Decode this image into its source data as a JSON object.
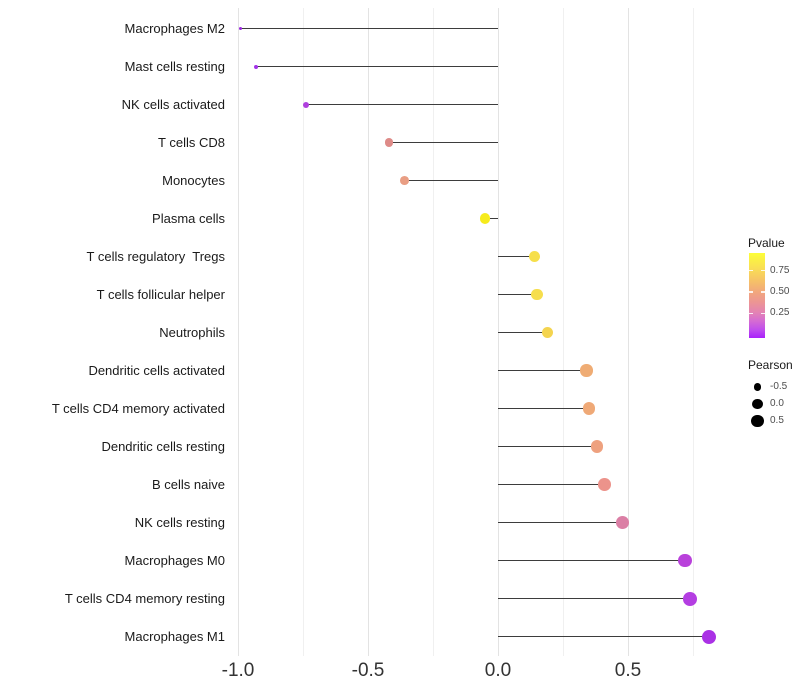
{
  "chart_data": {
    "type": "lollipop",
    "title": "",
    "xlabel": "",
    "ylabel": "",
    "grid": true,
    "legend_position": "right",
    "x_axis": {
      "range": [
        -1.08,
        0.91
      ],
      "major_ticks": [
        -1.0,
        -0.5,
        0.0,
        0.5
      ],
      "tick_labels": [
        "-1.0",
        "-0.5",
        "0.0",
        "0.5"
      ],
      "minor_ticks": [
        -0.75,
        -0.25,
        0.25,
        0.75
      ]
    },
    "categories": [
      "Macrophages M2",
      "Mast cells resting",
      "NK cells activated",
      "T cells CD8",
      "Monocytes",
      "Plasma cells",
      "T cells regulatory  Tregs",
      "T cells follicular helper",
      "Neutrophils",
      "Dendritic cells activated",
      "T cells CD4 memory activated",
      "Dendritic cells resting",
      "B cells naive",
      "NK cells resting",
      "Macrophages M0",
      "T cells CD4 memory resting",
      "Macrophages M1"
    ],
    "points": [
      {
        "category": "Macrophages M2",
        "pearson": -0.99,
        "pvalue_approx": 0.01,
        "color": "#9A28E0"
      },
      {
        "category": "Mast cells resting",
        "pearson": -0.93,
        "pvalue_approx": 0.02,
        "color": "#A232E8"
      },
      {
        "category": "NK cells activated",
        "pearson": -0.74,
        "pvalue_approx": 0.09,
        "color": "#AF3FDE"
      },
      {
        "category": "T cells CD8",
        "pearson": -0.42,
        "pvalue_approx": 0.52,
        "color": "#DE8B88"
      },
      {
        "category": "Monocytes",
        "pearson": -0.36,
        "pvalue_approx": 0.56,
        "color": "#E99E84"
      },
      {
        "category": "Plasma cells",
        "pearson": -0.05,
        "pvalue_approx": 0.93,
        "color": "#F6EB1C"
      },
      {
        "category": "T cells regulatory  Tregs",
        "pearson": 0.14,
        "pvalue_approx": 0.85,
        "color": "#F6DF4A"
      },
      {
        "category": "T cells follicular helper",
        "pearson": 0.15,
        "pvalue_approx": 0.85,
        "color": "#F6DE4D"
      },
      {
        "category": "Neutrophils",
        "pearson": 0.19,
        "pvalue_approx": 0.8,
        "color": "#F4D44F"
      },
      {
        "category": "Dendritic cells activated",
        "pearson": 0.34,
        "pvalue_approx": 0.68,
        "color": "#EFAC74"
      },
      {
        "category": "T cells CD4 memory activated",
        "pearson": 0.35,
        "pvalue_approx": 0.67,
        "color": "#EFA977"
      },
      {
        "category": "Dendritic cells resting",
        "pearson": 0.38,
        "pvalue_approx": 0.63,
        "color": "#EEA17F"
      },
      {
        "category": "B cells naive",
        "pearson": 0.41,
        "pvalue_approx": 0.53,
        "color": "#EC938B"
      },
      {
        "category": "NK cells resting",
        "pearson": 0.48,
        "pvalue_approx": 0.38,
        "color": "#DB7FA5"
      },
      {
        "category": "Macrophages M0",
        "pearson": 0.72,
        "pvalue_approx": 0.12,
        "color": "#B941DB"
      },
      {
        "category": "T cells CD4 memory resting",
        "pearson": 0.74,
        "pvalue_approx": 0.1,
        "color": "#B43EE2"
      },
      {
        "category": "Macrophages M1",
        "pearson": 0.81,
        "pvalue_approx": 0.06,
        "color": "#AA31E5"
      }
    ],
    "legend": {
      "pvalue": {
        "title": "Pvalue",
        "tick_labels": [
          "0.75",
          "0.50",
          "0.25"
        ],
        "tick_positions_pct": [
          20.8,
          45.9,
          71.0
        ],
        "range": [
          0,
          0.96
        ],
        "gradient_stops": [
          {
            "color": "#FCFE38",
            "pos": 0
          },
          {
            "color": "#F9DE55",
            "pos": 18
          },
          {
            "color": "#F6C167",
            "pos": 33
          },
          {
            "color": "#F1A57F",
            "pos": 47
          },
          {
            "color": "#EC9594",
            "pos": 58
          },
          {
            "color": "#E383B4",
            "pos": 70
          },
          {
            "color": "#D56BD3",
            "pos": 80
          },
          {
            "color": "#C04FEC",
            "pos": 90
          },
          {
            "color": "#A921FB",
            "pos": 100
          }
        ]
      },
      "pearson": {
        "title": "Pearson",
        "entries": [
          {
            "label": "-0.5",
            "value": -0.5
          },
          {
            "label": "0.0",
            "value": 0.0
          },
          {
            "label": "0.5",
            "value": 0.5
          }
        ],
        "dot_color": "#000000"
      }
    }
  },
  "colors": {
    "background": "#ffffff",
    "gridline_major": "#e3e3e3",
    "gridline_minor": "#f0f0f0",
    "stem": "#3d3d3d",
    "axis_text": "#333333",
    "label_text": "#1a1a1a"
  }
}
